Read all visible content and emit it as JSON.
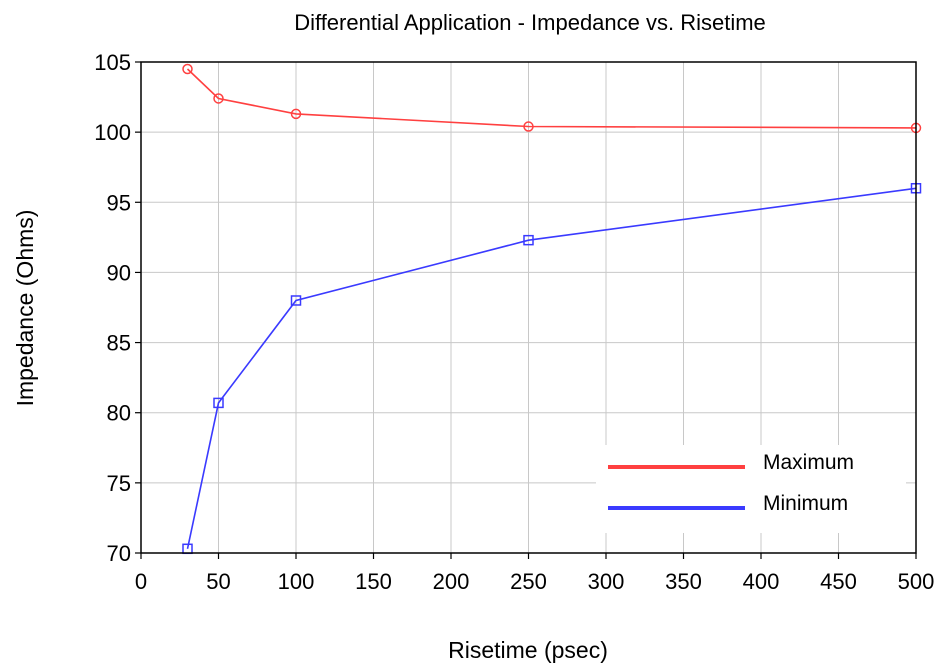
{
  "chart_data": {
    "type": "line",
    "title": "Differential Application - Impedance vs. Risetime",
    "xlabel": "Risetime (psec)",
    "ylabel": "Impedance (Ohms)",
    "xlim": [
      0,
      500
    ],
    "ylim": [
      70,
      105
    ],
    "x_ticks": [
      "0",
      "50",
      "100",
      "150",
      "200",
      "250",
      "300",
      "350",
      "400",
      "450",
      "500"
    ],
    "y_ticks": [
      "70",
      "75",
      "80",
      "85",
      "90",
      "95",
      "100",
      "105"
    ],
    "grid": true,
    "legend_position": "lower-right",
    "series": [
      {
        "name": "Maximum",
        "color": "#ff4040",
        "marker": "circle",
        "x": [
          30,
          50,
          100,
          250,
          500
        ],
        "y": [
          104.5,
          102.4,
          101.3,
          100.4,
          100.3
        ]
      },
      {
        "name": "Minimum",
        "color": "#3a3aff",
        "marker": "square",
        "x": [
          30,
          50,
          100,
          250,
          500
        ],
        "y": [
          70.3,
          80.7,
          88.0,
          92.3,
          96.0
        ]
      }
    ]
  }
}
